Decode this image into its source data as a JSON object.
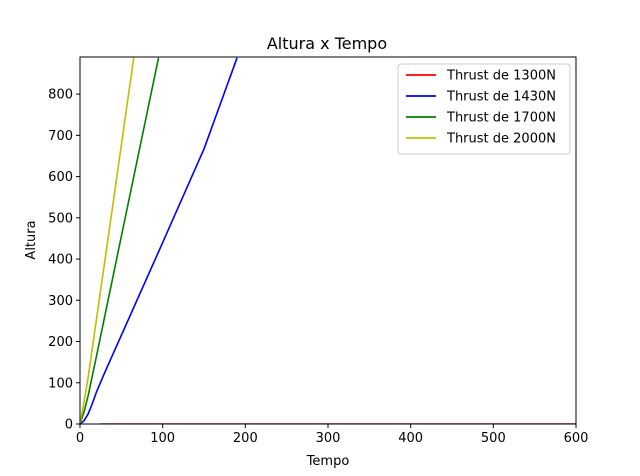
{
  "chart_data": {
    "type": "line",
    "title": "Altura x Tempo",
    "xlabel": "Tempo",
    "ylabel": "Altura",
    "xlim": [
      0,
      600
    ],
    "ylim": [
      0,
      890
    ],
    "xticks": [
      0,
      100,
      200,
      300,
      400,
      500,
      600
    ],
    "yticks": [
      0,
      100,
      200,
      300,
      400,
      500,
      600,
      700,
      800
    ],
    "grid": false,
    "legend_position": "top-right",
    "series": [
      {
        "name": "Thrust de 1300N",
        "color": "#ff0000",
        "points": [
          [
            25,
            0
          ],
          [
            600,
            0
          ]
        ]
      },
      {
        "name": "Thrust de 1430N",
        "color": "#0000ff",
        "points": [
          [
            0,
            0
          ],
          [
            5,
            8
          ],
          [
            10,
            25
          ],
          [
            15,
            50
          ],
          [
            20,
            78
          ],
          [
            30,
            125
          ],
          [
            50,
            215
          ],
          [
            100,
            440
          ],
          [
            150,
            667
          ],
          [
            190,
            888
          ]
        ]
      },
      {
        "name": "Thrust de 1700N",
        "color": "#008000",
        "points": [
          [
            0,
            0
          ],
          [
            5,
            30
          ],
          [
            10,
            70
          ],
          [
            20,
            165
          ],
          [
            50,
            455
          ],
          [
            95,
            888
          ]
        ]
      },
      {
        "name": "Thrust de 2000N",
        "color": "#bfbf00",
        "points": [
          [
            0,
            0
          ],
          [
            5,
            55
          ],
          [
            10,
            115
          ],
          [
            20,
            255
          ],
          [
            40,
            535
          ],
          [
            65,
            888
          ]
        ]
      }
    ]
  }
}
